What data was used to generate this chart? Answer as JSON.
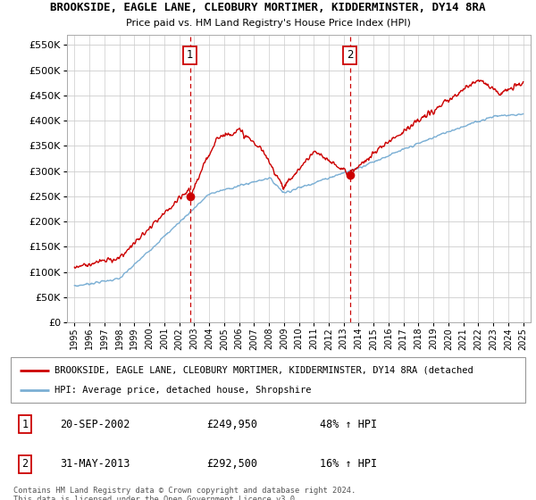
{
  "title1": "BROOKSIDE, EAGLE LANE, CLEOBURY MORTIMER, KIDDERMINSTER, DY14 8RA",
  "title2": "Price paid vs. HM Land Registry's House Price Index (HPI)",
  "ytick_vals": [
    0,
    50000,
    100000,
    150000,
    200000,
    250000,
    300000,
    350000,
    400000,
    450000,
    500000,
    550000
  ],
  "ylim": [
    0,
    570000
  ],
  "sale1": {
    "year": 2002.72,
    "price": 249950,
    "label": "1"
  },
  "sale2": {
    "year": 2013.41,
    "price": 292500,
    "label": "2"
  },
  "red_color": "#cc0000",
  "blue_color": "#7bafd4",
  "vline_color": "#cc0000",
  "grid_color": "#cccccc",
  "background_color": "#ffffff",
  "legend_label_red": "BROOKSIDE, EAGLE LANE, CLEOBURY MORTIMER, KIDDERMINSTER, DY14 8RA (detached",
  "legend_label_blue": "HPI: Average price, detached house, Shropshire",
  "table_row1": [
    "1",
    "20-SEP-2002",
    "£249,950",
    "48% ↑ HPI"
  ],
  "table_row2": [
    "2",
    "31-MAY-2013",
    "£292,500",
    "16% ↑ HPI"
  ],
  "footnote": "Contains HM Land Registry data © Crown copyright and database right 2024.\nThis data is licensed under the Open Government Licence v3.0."
}
